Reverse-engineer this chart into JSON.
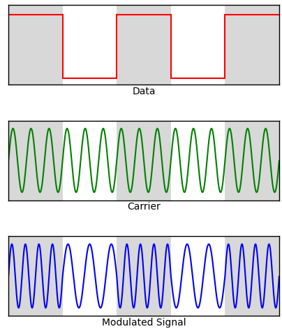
{
  "panel_labels": [
    "Data",
    "Carrier",
    "Modulated Signal"
  ],
  "panel_colors": [
    "red",
    "green",
    "blue"
  ],
  "bit_pattern": [
    1,
    0,
    1,
    0,
    1
  ],
  "bit_duration": 1.0,
  "total_time": 5.0,
  "carrier_freq": 3.0,
  "freq_high": 4.0,
  "freq_low": 2.5,
  "shade_color": "#d8d8d8",
  "background_color": "#ffffff",
  "label_fontsize": 10,
  "line_width": 1.5,
  "figsize": [
    4.04,
    4.71
  ],
  "dpi": 100
}
